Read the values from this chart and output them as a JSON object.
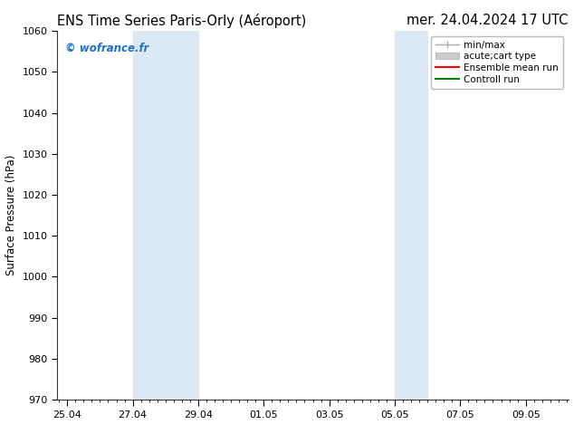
{
  "title_left": "ENS Time Series Paris-Orly (Aéroport)",
  "title_right": "mer. 24.04.2024 17 UTC",
  "ylabel": "Surface Pressure (hPa)",
  "ylim": [
    970,
    1060
  ],
  "yticks": [
    970,
    980,
    990,
    1000,
    1010,
    1020,
    1030,
    1040,
    1050,
    1060
  ],
  "xtick_labels": [
    "25.04",
    "27.04",
    "29.04",
    "01.05",
    "03.05",
    "05.05",
    "07.05",
    "09.05"
  ],
  "xtick_positions": [
    0,
    2,
    4,
    6,
    8,
    10,
    12,
    14
  ],
  "xlim": [
    -0.3,
    15.3
  ],
  "shaded_bands": [
    {
      "x_start": 2,
      "x_end": 4
    },
    {
      "x_start": 10,
      "x_end": 11
    }
  ],
  "band_color": "#dce9f5",
  "watermark": "© wofrance.fr",
  "watermark_color": "#1a6fd4",
  "legend_entries": [
    {
      "label": "min/max",
      "color": "#aaaaaa",
      "lw": 1.0,
      "style": "errbar"
    },
    {
      "label": "acute;cart type",
      "color": "#cccccc",
      "lw": 8,
      "style": "rect"
    },
    {
      "label": "Ensemble mean run",
      "color": "#ff0000",
      "lw": 1.5,
      "style": "line"
    },
    {
      "label": "Controll run",
      "color": "#008000",
      "lw": 1.5,
      "style": "line"
    }
  ],
  "bg_color": "#ffffff",
  "title_fontsize": 10.5,
  "tick_fontsize": 8,
  "ylabel_fontsize": 8.5,
  "legend_fontsize": 7.5
}
